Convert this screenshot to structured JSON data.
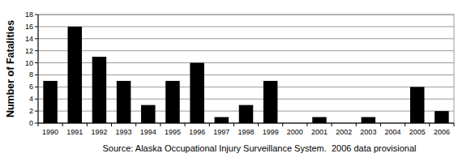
{
  "chart_data": {
    "type": "bar",
    "y_label": "Number of Fatalities",
    "annotations": [
      "Source: Alaska Occupational Injury Surveillance System.  2006 data provisional"
    ],
    "categories": [
      "1990",
      "1991",
      "1992",
      "1993",
      "1994",
      "1995",
      "1996",
      "1997",
      "1998",
      "1999",
      "2000",
      "2001",
      "2002",
      "2003",
      "2004",
      "2005",
      "2006"
    ],
    "values": [
      7,
      16,
      11,
      7,
      3,
      7,
      10,
      1,
      3,
      7,
      0,
      1,
      0,
      1,
      0,
      6,
      2
    ],
    "color": "#000000",
    "ylim": [
      0,
      18
    ],
    "yticks": [
      0,
      2,
      4,
      6,
      8,
      10,
      12,
      14,
      16,
      18
    ],
    "grid": true
  }
}
